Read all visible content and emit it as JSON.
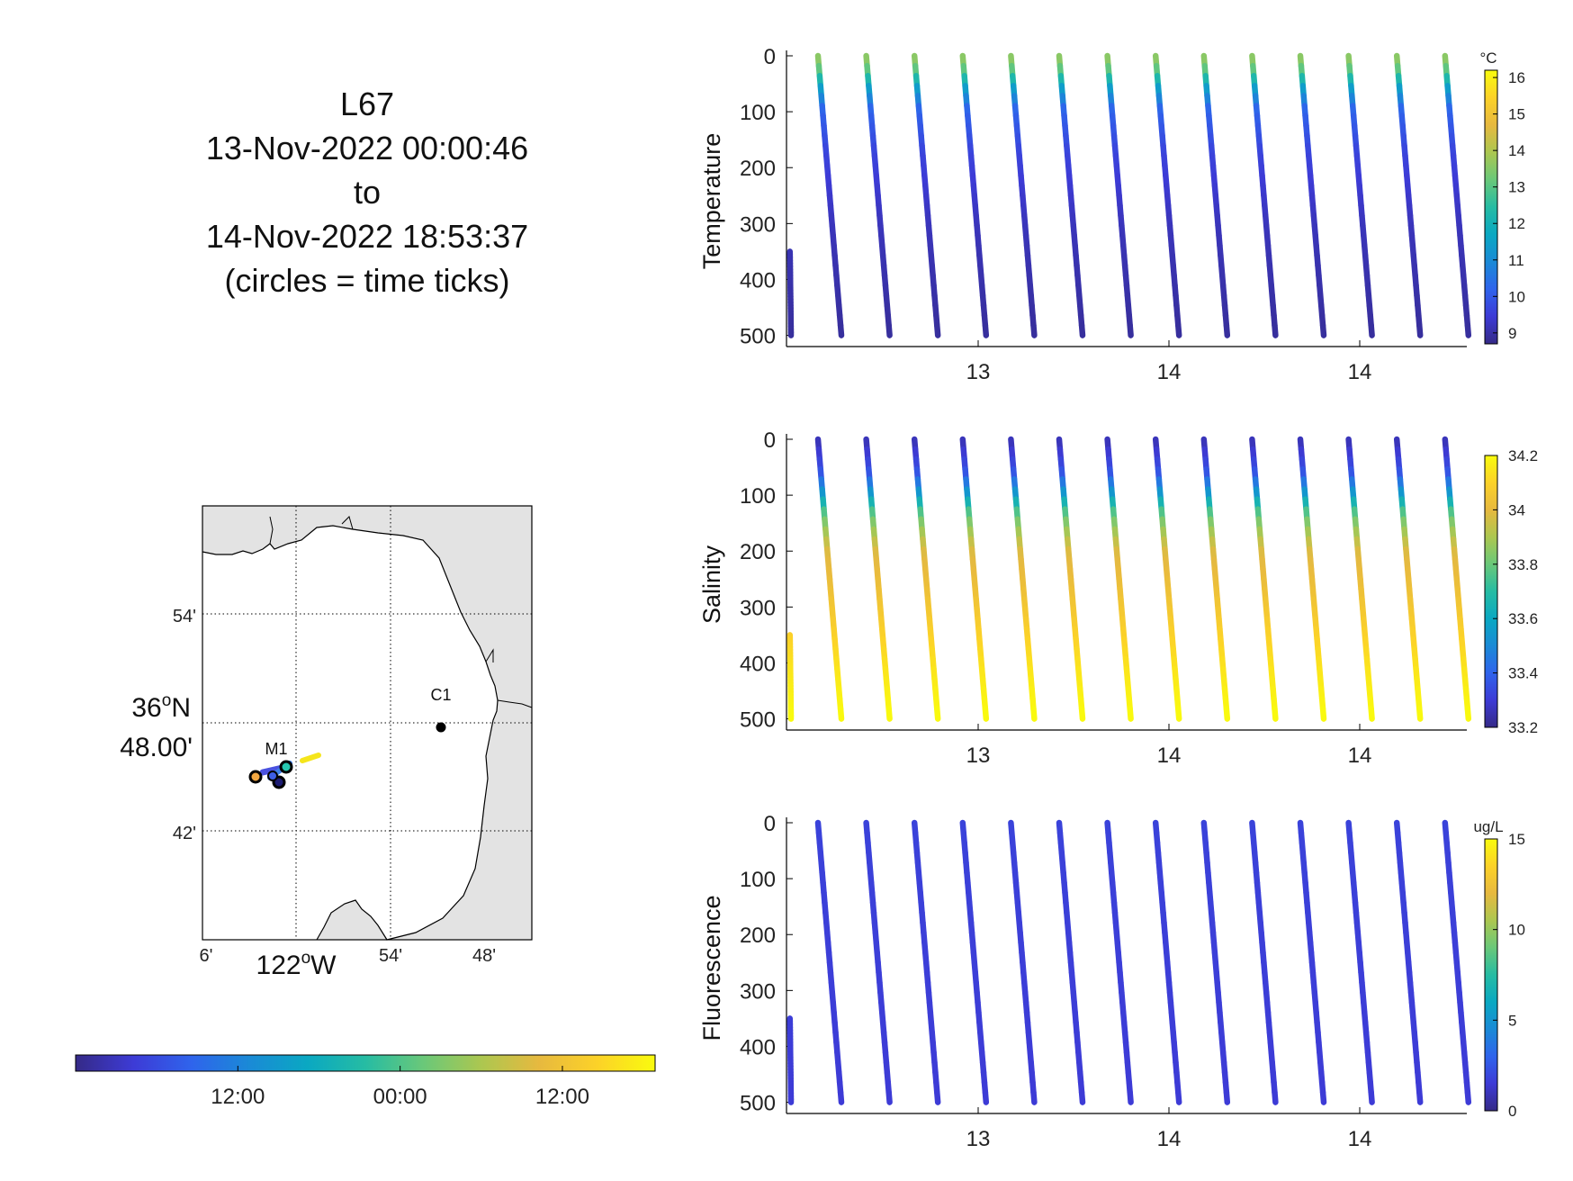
{
  "title": {
    "lines": [
      "L67",
      "13-Nov-2022 00:00:46",
      "to",
      "14-Nov-2022 18:53:37",
      "(circles = time ticks)"
    ]
  },
  "map": {
    "lon_ticks": [
      "6'",
      "54'",
      "48'"
    ],
    "lat_ticks": [
      "54'",
      "42'"
    ],
    "lon_label_deg": "122",
    "lon_label_sup": "o",
    "lon_label_dir": "W",
    "lat_label_deg": "36",
    "lat_label_sup": "o",
    "lat_label_dir": "N",
    "lat_label_min": "48.00'",
    "stations": [
      {
        "name": "M1"
      },
      {
        "name": "C1"
      }
    ],
    "colors": {
      "land": "#e3e3e3",
      "water": "#ffffff",
      "coast": "#000000",
      "station": "#000000"
    }
  },
  "time_colorbar": {
    "ticks": [
      "12:00",
      "00:00",
      "12:00"
    ],
    "tick_fractions": [
      0.28,
      0.56,
      0.84
    ]
  },
  "chart_data": [
    {
      "type": "scatter",
      "ylabel": "Temperature",
      "units": "°C",
      "colormap": "parula",
      "clim": [
        8.7,
        16.2
      ],
      "colorbar_ticks": [
        9,
        10,
        11,
        12,
        13,
        14,
        15,
        16
      ],
      "y_ticks": [
        0,
        100,
        200,
        300,
        400,
        500
      ],
      "ylim": [
        0,
        520
      ],
      "y_reversed": true,
      "x_tick_labels": [
        "13",
        "14",
        "14"
      ],
      "profiles": 15,
      "profile_depth_range": [
        0,
        500
      ],
      "value_profile": [
        [
          0,
          13.8
        ],
        [
          30,
          13.0
        ],
        [
          60,
          11.5
        ],
        [
          100,
          10.2
        ],
        [
          180,
          9.6
        ],
        [
          300,
          9.2
        ],
        [
          500,
          8.9
        ]
      ]
    },
    {
      "type": "scatter",
      "ylabel": "Salinity",
      "units": "",
      "colormap": "parula",
      "clim": [
        33.2,
        34.2
      ],
      "colorbar_ticks": [
        33.2,
        33.4,
        33.6,
        33.8,
        34,
        34.2
      ],
      "y_ticks": [
        0,
        100,
        200,
        300,
        400,
        500
      ],
      "ylim": [
        0,
        520
      ],
      "y_reversed": true,
      "x_tick_labels": [
        "13",
        "14",
        "14"
      ],
      "profiles": 15,
      "profile_depth_range": [
        0,
        500
      ],
      "value_profile": [
        [
          0,
          33.25
        ],
        [
          60,
          33.35
        ],
        [
          100,
          33.55
        ],
        [
          140,
          33.8
        ],
        [
          200,
          33.98
        ],
        [
          300,
          34.05
        ],
        [
          420,
          34.15
        ],
        [
          500,
          34.2
        ]
      ]
    },
    {
      "type": "scatter",
      "ylabel": "Fluorescence",
      "units": "ug/L",
      "colormap": "parula",
      "clim": [
        0,
        15
      ],
      "colorbar_ticks": [
        0,
        5,
        10,
        15
      ],
      "y_ticks": [
        0,
        100,
        200,
        300,
        400,
        500
      ],
      "ylim": [
        0,
        520
      ],
      "y_reversed": true,
      "x_tick_labels": [
        "13",
        "14",
        "14"
      ],
      "profiles": 15,
      "profile_depth_range": [
        0,
        500
      ],
      "value_profile": [
        [
          0,
          1.8
        ],
        [
          100,
          1.7
        ],
        [
          300,
          1.6
        ],
        [
          500,
          1.5
        ]
      ]
    }
  ]
}
